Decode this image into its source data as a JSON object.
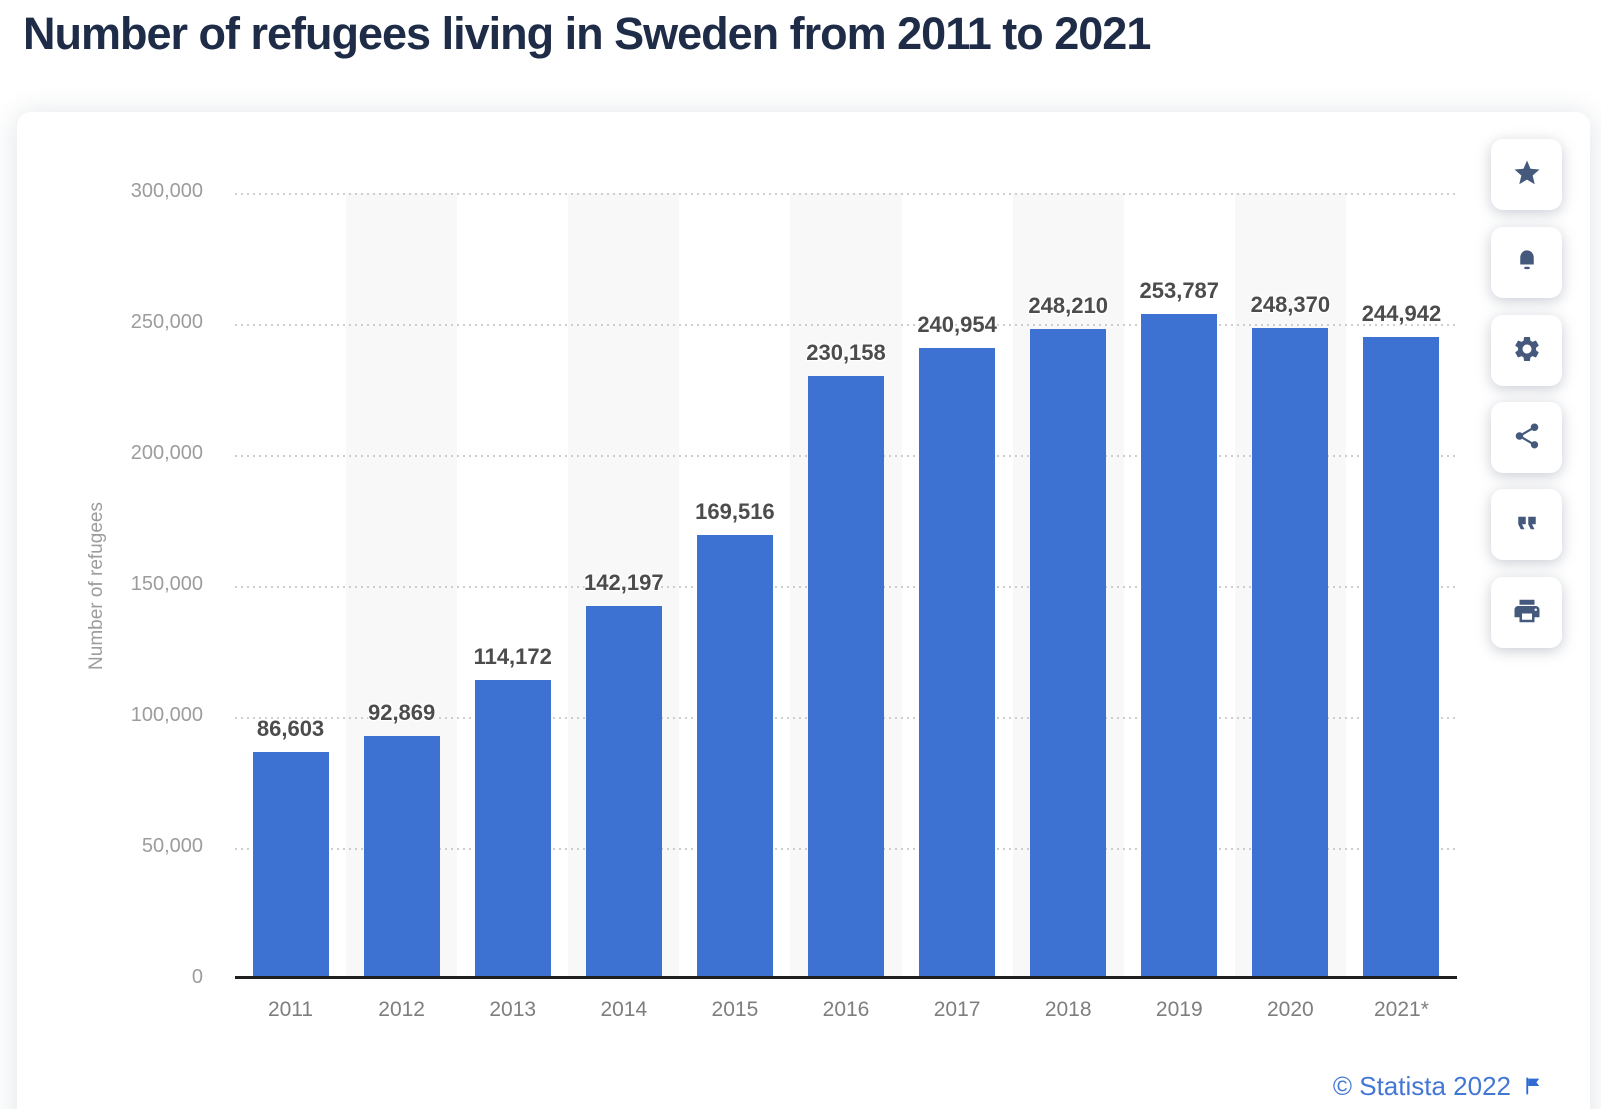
{
  "page": {
    "title": "Number of refugees living in Sweden from 2011 to 2021"
  },
  "chart_data": {
    "type": "bar",
    "title": "Number of refugees living in Sweden from 2011 to 2021",
    "categories": [
      "2011",
      "2012",
      "2013",
      "2014",
      "2015",
      "2016",
      "2017",
      "2018",
      "2019",
      "2020",
      "2021*"
    ],
    "values": [
      86603,
      92869,
      114172,
      142197,
      169516,
      230158,
      240954,
      248210,
      253787,
      248370,
      244942
    ],
    "value_labels": [
      "86,603",
      "92,869",
      "114,172",
      "142,197",
      "169,516",
      "230,158",
      "240,954",
      "248,210",
      "253,787",
      "248,370",
      "244,942"
    ],
    "xlabel": "",
    "ylabel": "Number of refugees",
    "ylim": [
      0,
      300000
    ],
    "ytick_interval": 50000,
    "ytick_labels": [
      "300,000",
      "250,000",
      "200,000",
      "150,000",
      "100,000",
      "50,000",
      "0"
    ],
    "grid": "horizontal dotted lines, on",
    "legend": "none",
    "column_stripes": "light gray band behind every 2nd category column"
  },
  "colors": {
    "bar": "#3d71d2",
    "title": "#1e2c48",
    "axis_line": "#1f1f1f",
    "grid_dots": "#cdcdcd",
    "stripe": "#f8f8f8",
    "tick_text": "#9c9c9c",
    "category_text": "#7e7e7e",
    "value_label_text": "#4c4c4c",
    "toolbar_icon": "#44597c",
    "credit_blue": "#4377d4"
  },
  "toolbar": {
    "buttons": [
      {
        "icon": "star-icon"
      },
      {
        "icon": "bell-icon"
      },
      {
        "icon": "gear-icon"
      },
      {
        "icon": "share-icon"
      },
      {
        "icon": "quote-icon"
      },
      {
        "icon": "print-icon"
      }
    ]
  },
  "footer": {
    "credit": "© Statista 2022"
  }
}
